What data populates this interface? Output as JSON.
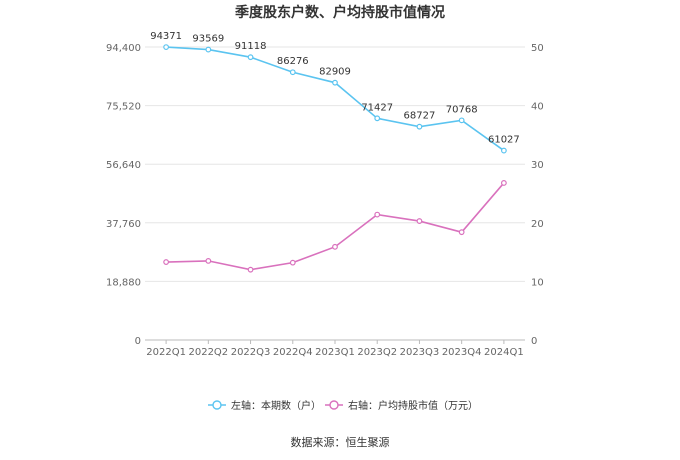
{
  "chart_data": {
    "type": "line",
    "title": "季度股东户数、户均持股市值情况",
    "categories": [
      "2022Q1",
      "2022Q2",
      "2022Q3",
      "2022Q4",
      "2023Q1",
      "2023Q2",
      "2023Q3",
      "2023Q4",
      "2024Q1"
    ],
    "series": [
      {
        "name": "左轴：本期数（户）",
        "axis": "left",
        "color": "#5bc4f0",
        "values": [
          94371,
          93569,
          91118,
          86276,
          82909,
          71427,
          68727,
          70768,
          61027
        ],
        "labels": [
          "94371",
          "93569",
          "91118",
          "86276",
          "82909",
          "71427",
          "68727",
          "70768",
          "61027"
        ]
      },
      {
        "name": "右轴：户均持股市值（万元）",
        "axis": "right",
        "color": "#d971bd",
        "values": [
          13.3,
          13.5,
          12.0,
          13.2,
          15.9,
          21.4,
          20.3,
          18.4,
          26.8
        ]
      }
    ],
    "y_left": {
      "min": 0,
      "max": 94400,
      "ticks": [
        "0",
        "18,880",
        "37,760",
        "56,640",
        "75,520",
        "94,400"
      ],
      "tick_values": [
        0,
        18880,
        37760,
        56640,
        75520,
        94400
      ]
    },
    "y_right": {
      "min": 0,
      "max": 50,
      "ticks": [
        "0",
        "10",
        "20",
        "30",
        "40",
        "50"
      ],
      "tick_values": [
        0,
        10,
        20,
        30,
        40,
        50
      ]
    },
    "grid": true,
    "legend_position": "bottom",
    "source": "数据来源：恒生聚源"
  }
}
